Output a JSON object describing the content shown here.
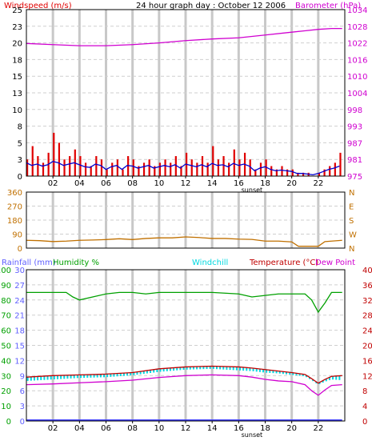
{
  "title": "24 hour graph day : October 12 2006",
  "colors": {
    "wind": "#e00000",
    "wind_avg": "#0000d0",
    "barometer": "#d000d0",
    "direction": "#c07000",
    "humidity": "#00a000",
    "windchill": "#00d8e0",
    "temperature": "#c00000",
    "dewpoint": "#d000d0",
    "rainfall": "#4040ff",
    "label_blue": "#6060ff",
    "axis_text": "#000000",
    "right_temp": "#c00000",
    "right_baro": "#d000d0",
    "right_dir": "#c07000"
  },
  "x_ticks": [
    "02",
    "04",
    "06",
    "08",
    "10",
    "12",
    "14",
    "16",
    "18",
    "20",
    "22"
  ],
  "sunset_label": "sunset",
  "chart_data": [
    {
      "type": "line",
      "name": "wind-barometer",
      "labels": {
        "left": "Windspeed (m/s)",
        "right": "Barometer (hPa)"
      },
      "x_range": [
        0,
        24
      ],
      "y_left": {
        "range": [
          0,
          25
        ],
        "ticks": [
          0,
          3,
          5,
          8,
          10,
          13,
          15,
          18,
          20,
          23,
          25
        ]
      },
      "y_right": {
        "range": [
          975,
          1034
        ],
        "ticks": [
          975,
          981,
          987,
          993,
          998,
          1004,
          1010,
          1016,
          1022,
          1028,
          1034
        ]
      },
      "grid": true,
      "series": [
        {
          "name": "Windspeed",
          "kind": "bars",
          "x": [
            0.0,
            0.4,
            0.8,
            1.2,
            1.6,
            2.0,
            2.4,
            2.8,
            3.2,
            3.6,
            4.0,
            4.4,
            4.8,
            5.2,
            5.6,
            6.0,
            6.4,
            6.8,
            7.2,
            7.6,
            8.0,
            8.4,
            8.8,
            9.2,
            9.6,
            10.0,
            10.4,
            10.8,
            11.2,
            11.6,
            12.0,
            12.4,
            12.8,
            13.2,
            13.6,
            14.0,
            14.4,
            14.8,
            15.2,
            15.6,
            16.0,
            16.4,
            16.8,
            17.2,
            17.6,
            18.0,
            18.4,
            18.8,
            19.2,
            19.6,
            20.0,
            20.4,
            20.8,
            21.2,
            21.6,
            22.0,
            22.4,
            22.8,
            23.2,
            23.6
          ],
          "values": [
            2.5,
            4.5,
            3.0,
            2.0,
            3.5,
            6.5,
            5.0,
            2.5,
            3.0,
            4.0,
            3.0,
            2.0,
            1.5,
            3.0,
            2.5,
            1.0,
            2.0,
            2.5,
            1.0,
            3.0,
            2.5,
            1.5,
            2.0,
            2.5,
            1.5,
            2.0,
            2.5,
            2.0,
            3.0,
            1.5,
            3.5,
            2.5,
            2.0,
            3.0,
            2.0,
            4.5,
            2.5,
            3.0,
            2.0,
            4.0,
            2.5,
            3.5,
            2.5,
            1.0,
            2.0,
            2.5,
            1.5,
            1.0,
            1.5,
            1.0,
            1.0,
            0.5,
            0.5,
            0.5,
            0.0,
            0.5,
            1.0,
            1.5,
            2.0,
            3.5
          ]
        },
        {
          "name": "Wind average",
          "kind": "line",
          "x": [
            0.0,
            0.4,
            0.8,
            1.2,
            1.6,
            2.0,
            2.4,
            2.8,
            3.2,
            3.6,
            4.0,
            4.4,
            4.8,
            5.2,
            5.6,
            6.0,
            6.4,
            6.8,
            7.2,
            7.6,
            8.0,
            8.4,
            8.8,
            9.2,
            9.6,
            10.0,
            10.4,
            10.8,
            11.2,
            11.6,
            12.0,
            12.4,
            12.8,
            13.2,
            13.6,
            14.0,
            14.4,
            14.8,
            15.2,
            15.6,
            16.0,
            16.4,
            16.8,
            17.2,
            17.6,
            18.0,
            18.4,
            18.8,
            19.2,
            19.6,
            20.0,
            20.4,
            20.8,
            21.2,
            21.6,
            22.0,
            22.4,
            22.8,
            23.2,
            23.6
          ],
          "values": [
            2.0,
            1.6,
            1.8,
            1.5,
            1.7,
            2.2,
            2.0,
            1.6,
            1.8,
            2.0,
            1.7,
            1.4,
            1.3,
            1.8,
            1.6,
            1.0,
            1.4,
            1.6,
            1.0,
            1.6,
            1.5,
            1.2,
            1.4,
            1.6,
            1.2,
            1.4,
            1.6,
            1.4,
            1.7,
            1.2,
            1.8,
            1.6,
            1.4,
            1.7,
            1.4,
            1.9,
            1.6,
            1.7,
            1.4,
            1.9,
            1.6,
            1.8,
            1.5,
            0.8,
            1.2,
            1.4,
            1.0,
            0.8,
            0.9,
            0.8,
            0.7,
            0.4,
            0.4,
            0.3,
            0.2,
            0.4,
            0.7,
            1.0,
            1.2,
            1.5
          ]
        },
        {
          "name": "Barometer",
          "kind": "line",
          "axis": "right",
          "x": [
            0,
            2,
            4,
            6,
            8,
            10,
            12,
            14,
            16,
            18,
            20,
            22,
            23,
            23.8
          ],
          "values": [
            1022.0,
            1021.6,
            1021.2,
            1021.2,
            1021.6,
            1022.2,
            1023.0,
            1023.6,
            1024.0,
            1025.0,
            1026.0,
            1027.0,
            1027.3,
            1027.3
          ]
        }
      ]
    },
    {
      "type": "line",
      "name": "wind-direction",
      "x_range": [
        0,
        24
      ],
      "y_left": {
        "range": [
          0,
          360
        ],
        "ticks": [
          0,
          90,
          180,
          270,
          360
        ]
      },
      "y_right_labels": [
        "N",
        "W",
        "S",
        "E",
        "N"
      ],
      "series": [
        {
          "name": "Wind direction",
          "x": [
            0,
            1,
            2,
            3,
            4,
            5,
            6,
            7,
            8,
            9,
            10,
            11,
            12,
            13,
            14,
            15,
            16,
            17,
            18,
            19,
            20,
            20.5,
            21,
            22,
            22.5,
            23,
            23.8
          ],
          "values": [
            50,
            48,
            42,
            45,
            50,
            52,
            55,
            60,
            55,
            62,
            66,
            66,
            72,
            68,
            62,
            62,
            58,
            56,
            45,
            45,
            40,
            12,
            12,
            12,
            42,
            45,
            50
          ]
        }
      ]
    },
    {
      "type": "line",
      "name": "temperature-humidity",
      "labels": {
        "rainfall": "Rainfall (mm)",
        "humidity": "Humidity %",
        "windchill": "Windchill",
        "temperature": "Temperature (°C)",
        "dewpoint": "Dew Point"
      },
      "x_range": [
        0,
        24
      ],
      "y_humidity": {
        "range": [
          0,
          100
        ],
        "ticks": [
          0,
          10,
          20,
          30,
          40,
          50,
          60,
          70,
          80,
          90,
          100
        ]
      },
      "y_rainfall": {
        "range": [
          0,
          30
        ],
        "ticks": [
          0,
          3,
          6,
          9,
          12,
          15,
          18,
          21,
          24,
          27,
          30
        ]
      },
      "y_temperature": {
        "range": [
          0,
          40
        ],
        "ticks": [
          0,
          4,
          8,
          12,
          16,
          20,
          24,
          28,
          32,
          36,
          40
        ]
      },
      "series": [
        {
          "name": "Humidity",
          "axis": "humidity",
          "x": [
            0,
            3,
            3.5,
            4,
            5,
            6,
            7,
            8,
            9,
            10,
            12,
            14,
            16,
            17,
            18,
            19,
            20,
            21,
            21.5,
            22,
            22.5,
            23,
            23.8
          ],
          "values": [
            85,
            85,
            82,
            80,
            82,
            84,
            85,
            85,
            84,
            85,
            85,
            85,
            84,
            82,
            83,
            84,
            84,
            84,
            80,
            72,
            78,
            85,
            85
          ]
        },
        {
          "name": "Temperature",
          "axis": "temperature",
          "x": [
            0,
            2,
            4,
            6,
            8,
            10,
            12,
            14,
            16,
            17,
            18,
            19,
            20,
            21,
            21.5,
            22,
            22.5,
            23,
            23.8
          ],
          "values": [
            11.6,
            12.0,
            12.2,
            12.4,
            12.8,
            13.8,
            14.3,
            14.5,
            14.3,
            14.0,
            13.6,
            13.2,
            12.8,
            12.3,
            11.2,
            10.0,
            11.0,
            11.8,
            12.0
          ]
        },
        {
          "name": "Windchill",
          "axis": "temperature",
          "x": [
            0,
            2,
            4,
            6,
            8,
            10,
            12,
            14,
            16,
            17,
            18,
            19,
            20,
            21,
            21.5,
            22,
            22.5,
            23,
            23.8
          ],
          "values": [
            10.8,
            11.2,
            11.6,
            11.8,
            12.3,
            13.2,
            13.8,
            14.0,
            13.6,
            13.4,
            13.0,
            12.8,
            12.4,
            12.0,
            11.0,
            9.8,
            10.6,
            11.2,
            11.0
          ]
        },
        {
          "name": "Dew Point",
          "axis": "temperature",
          "x": [
            0,
            2,
            4,
            6,
            8,
            10,
            12,
            14,
            16,
            17,
            18,
            19,
            20,
            21,
            21.5,
            22,
            22.5,
            23,
            23.8
          ],
          "values": [
            9.6,
            9.8,
            10.1,
            10.4,
            10.8,
            11.5,
            12.0,
            12.2,
            12.0,
            11.6,
            11.0,
            10.6,
            10.4,
            9.6,
            8.0,
            6.8,
            8.2,
            9.4,
            9.6
          ]
        },
        {
          "name": "Rainfall",
          "axis": "rainfall",
          "x": [
            0,
            23.8
          ],
          "values": [
            0,
            0
          ]
        }
      ]
    }
  ]
}
